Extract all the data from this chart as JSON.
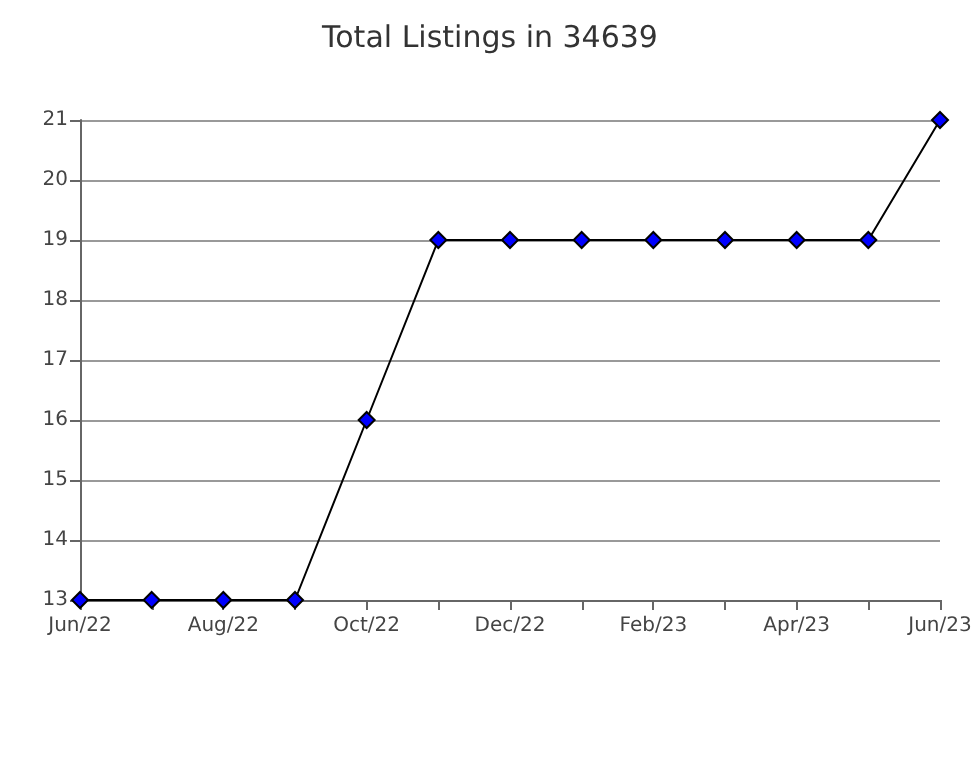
{
  "chart_data": {
    "type": "line",
    "title": "Total Listings in 34639",
    "categories": [
      "Jun/22",
      null,
      "Aug/22",
      null,
      "Oct/22",
      null,
      "Dec/22",
      null,
      "Feb/23",
      null,
      "Apr/23",
      null,
      "Jun/23"
    ],
    "series": [
      {
        "color": "#0000ff",
        "values": [
          13,
          13,
          13,
          13,
          16,
          19,
          19,
          19,
          19,
          19,
          19,
          19,
          21
        ]
      }
    ],
    "ylim": [
      13,
      21
    ],
    "yticks": [
      13,
      14,
      15,
      16,
      17,
      18,
      19,
      20,
      21
    ],
    "grid": "y",
    "marker": "diamond",
    "line_style": "solid"
  }
}
